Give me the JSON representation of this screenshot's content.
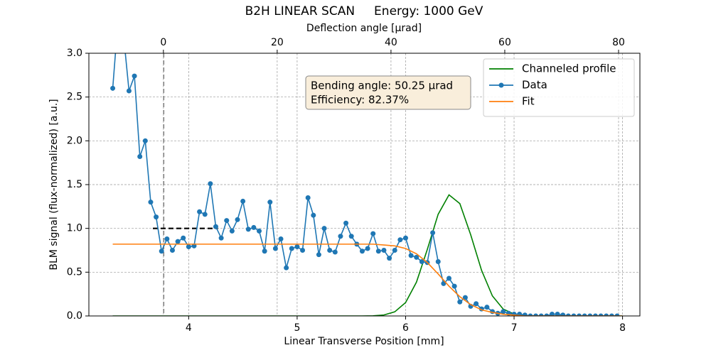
{
  "chart_data": {
    "type": "line",
    "title": "B2H LINEAR SCAN     Energy: 1000 GeV",
    "xlabel": "Linear Transverse Position [mm]",
    "ylabel": "BLM signal (flux-normalized) [a.u.]",
    "x2label": "Deflection angle [μrad]",
    "xlim": [
      3.08,
      8.16
    ],
    "xticks": [
      4,
      5,
      6,
      7,
      8
    ],
    "x2lim": [
      -13.1,
      83.75
    ],
    "x2ticks": [
      0,
      20,
      40,
      60,
      80
    ],
    "ylim": [
      0,
      3
    ],
    "yticks": [
      {
        "value": 0,
        "label": "0.0"
      },
      0.5,
      {
        "value": 1,
        "label": "1.0"
      },
      1.5,
      {
        "value": 2,
        "label": "2.0"
      },
      2.5,
      {
        "value": 3,
        "label": "3.0"
      }
    ],
    "grid": true,
    "legend": "upper right",
    "annotation": [
      "Bending angle: 50.25 μrad",
      "Efficiency: 82.37%"
    ],
    "reference_vline_x": 3.77,
    "reference_segment": {
      "x": [
        3.67,
        4.27
      ],
      "y": 1.0
    },
    "series": [
      {
        "name": "Channeled profile",
        "color": "#008000",
        "marker": false,
        "x": [
          3.3,
          3.4,
          3.5,
          3.6,
          3.7,
          3.8,
          3.9,
          4.0,
          4.1,
          4.2,
          4.3,
          4.4,
          4.5,
          4.6,
          4.7,
          4.8,
          4.9,
          5.0,
          5.1,
          5.2,
          5.3,
          5.4,
          5.5,
          5.6,
          5.7,
          5.8,
          5.9,
          6.0,
          6.1,
          6.2,
          6.3,
          6.4,
          6.5,
          6.6,
          6.7,
          6.8,
          6.9,
          7.0,
          7.1,
          7.2,
          7.3,
          7.4,
          7.5,
          7.6,
          7.7,
          7.8,
          7.9,
          8.0
        ],
        "values": [
          0,
          0,
          0,
          0,
          0,
          0,
          0,
          0,
          0,
          0,
          0,
          0,
          0,
          0,
          0,
          0,
          0,
          0,
          0,
          0,
          0,
          0,
          0,
          0,
          0.002,
          0.011,
          0.047,
          0.153,
          0.386,
          0.759,
          1.161,
          1.383,
          1.283,
          0.927,
          0.522,
          0.229,
          0.078,
          0.021,
          0.004,
          0.001,
          0,
          0,
          0,
          0,
          0,
          0,
          0,
          0
        ]
      },
      {
        "name": "Data",
        "color": "#1f77b4",
        "marker": true,
        "x": [
          3.3,
          3.35,
          3.4,
          3.45,
          3.5,
          3.55,
          3.6,
          3.65,
          3.7,
          3.75,
          3.8,
          3.85,
          3.9,
          3.95,
          4.0,
          4.05,
          4.1,
          4.15,
          4.2,
          4.25,
          4.3,
          4.35,
          4.4,
          4.45,
          4.5,
          4.55,
          4.6,
          4.65,
          4.7,
          4.75,
          4.8,
          4.85,
          4.9,
          4.95,
          5.0,
          5.05,
          5.1,
          5.15,
          5.2,
          5.25,
          5.3,
          5.35,
          5.4,
          5.45,
          5.5,
          5.55,
          5.6,
          5.65,
          5.7,
          5.75,
          5.8,
          5.85,
          5.9,
          5.95,
          6.0,
          6.05,
          6.1,
          6.15,
          6.2,
          6.25,
          6.3,
          6.35,
          6.4,
          6.45,
          6.5,
          6.55,
          6.6,
          6.65,
          6.7,
          6.75,
          6.8,
          6.85,
          6.9,
          6.95,
          7.0,
          7.05,
          7.1,
          7.15,
          7.2,
          7.25,
          7.3,
          7.35,
          7.4,
          7.45,
          7.5,
          7.55,
          7.6,
          7.65,
          7.7,
          7.75,
          7.8,
          7.85,
          7.9,
          7.95
        ],
        "values": [
          2.6,
          3.4,
          3.2,
          2.57,
          2.74,
          1.82,
          2.0,
          1.3,
          1.13,
          0.74,
          0.88,
          0.75,
          0.85,
          0.89,
          0.79,
          0.8,
          1.19,
          1.16,
          1.51,
          1.02,
          0.89,
          1.09,
          0.97,
          1.1,
          1.31,
          0.99,
          1.01,
          0.97,
          0.74,
          1.3,
          0.77,
          0.88,
          0.55,
          0.77,
          0.79,
          0.75,
          1.35,
          1.15,
          0.7,
          1.0,
          0.75,
          0.73,
          0.91,
          1.06,
          0.91,
          0.82,
          0.74,
          0.77,
          0.94,
          0.74,
          0.75,
          0.66,
          0.75,
          0.87,
          0.89,
          0.69,
          0.67,
          0.62,
          0.61,
          0.95,
          0.62,
          0.37,
          0.43,
          0.34,
          0.16,
          0.21,
          0.11,
          0.14,
          0.08,
          0.1,
          0.05,
          0.03,
          0.05,
          0.03,
          0.02,
          0.02,
          0.01,
          0,
          0,
          0,
          0,
          0.02,
          0.02,
          0.01,
          0,
          0,
          0,
          0,
          0,
          0,
          0,
          0,
          0,
          0
        ]
      },
      {
        "name": "Fit",
        "color": "#ff7f0e",
        "marker": false,
        "x": [
          3.3,
          3.4,
          3.5,
          3.6,
          3.7,
          3.8,
          3.9,
          4.0,
          4.1,
          4.2,
          4.3,
          4.4,
          4.5,
          4.6,
          4.7,
          4.8,
          4.9,
          5.0,
          5.1,
          5.2,
          5.3,
          5.4,
          5.5,
          5.6,
          5.7,
          5.8,
          5.9,
          6.0,
          6.1,
          6.2,
          6.3,
          6.4,
          6.5,
          6.6,
          6.7,
          6.8,
          6.9,
          7.0,
          7.1,
          7.2,
          7.3,
          7.4,
          7.5,
          7.6,
          7.7,
          7.8,
          7.9,
          8.0
        ],
        "values": [
          0.82,
          0.82,
          0.82,
          0.82,
          0.82,
          0.82,
          0.82,
          0.82,
          0.82,
          0.82,
          0.82,
          0.82,
          0.82,
          0.82,
          0.82,
          0.82,
          0.82,
          0.82,
          0.82,
          0.82,
          0.82,
          0.82,
          0.82,
          0.82,
          0.82,
          0.81,
          0.8,
          0.77,
          0.71,
          0.61,
          0.48,
          0.34,
          0.22,
          0.13,
          0.07,
          0.04,
          0.02,
          0.01,
          0,
          0,
          0,
          0,
          0,
          0,
          0,
          0,
          0,
          0
        ]
      }
    ]
  }
}
